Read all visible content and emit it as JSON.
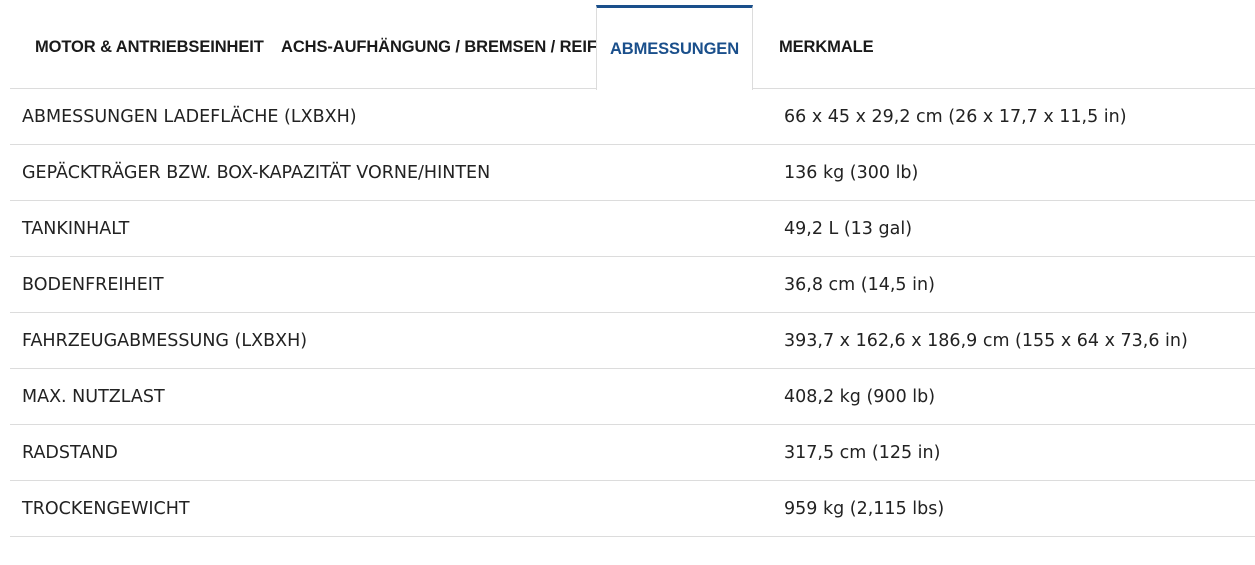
{
  "tabs": [
    {
      "label": "MOTOR & ANTRIEBSEINHEIT",
      "active": false
    },
    {
      "label": "ACHS-AUFHÄNGUNG / BREMSEN / REIFEN",
      "active": false
    },
    {
      "label": "ABMESSUNGEN",
      "active": true
    },
    {
      "label": "MERKMALE",
      "active": false
    }
  ],
  "colors": {
    "accent": "#1a4f8b",
    "divider": "#dcdcdc",
    "text": "#222222"
  },
  "specs": [
    {
      "label": "ABMESSUNGEN LADEFLÄCHE (LXBXH)",
      "value": "66 x 45 x 29,2 cm (26 x 17,7 x 11,5 in)"
    },
    {
      "label": "GEPÄCKTRÄGER BZW. BOX-KAPAZITÄT VORNE/HINTEN",
      "value": "136 kg (300 lb)"
    },
    {
      "label": "TANKINHALT",
      "value": "49,2 L (13 gal)"
    },
    {
      "label": "BODENFREIHEIT",
      "value": "36,8 cm (14,5 in)"
    },
    {
      "label": "FAHRZEUGABMESSUNG (LXBXH)",
      "value": "393,7 x 162,6 x 186,9 cm (155 x 64 x 73,6 in)"
    },
    {
      "label": "MAX. NUTZLAST",
      "value": "408,2 kg (900 lb)"
    },
    {
      "label": "RADSTAND",
      "value": "317,5 cm (125 in)"
    },
    {
      "label": "TROCKENGEWICHT",
      "value": "959 kg (2,115 lbs)"
    }
  ]
}
